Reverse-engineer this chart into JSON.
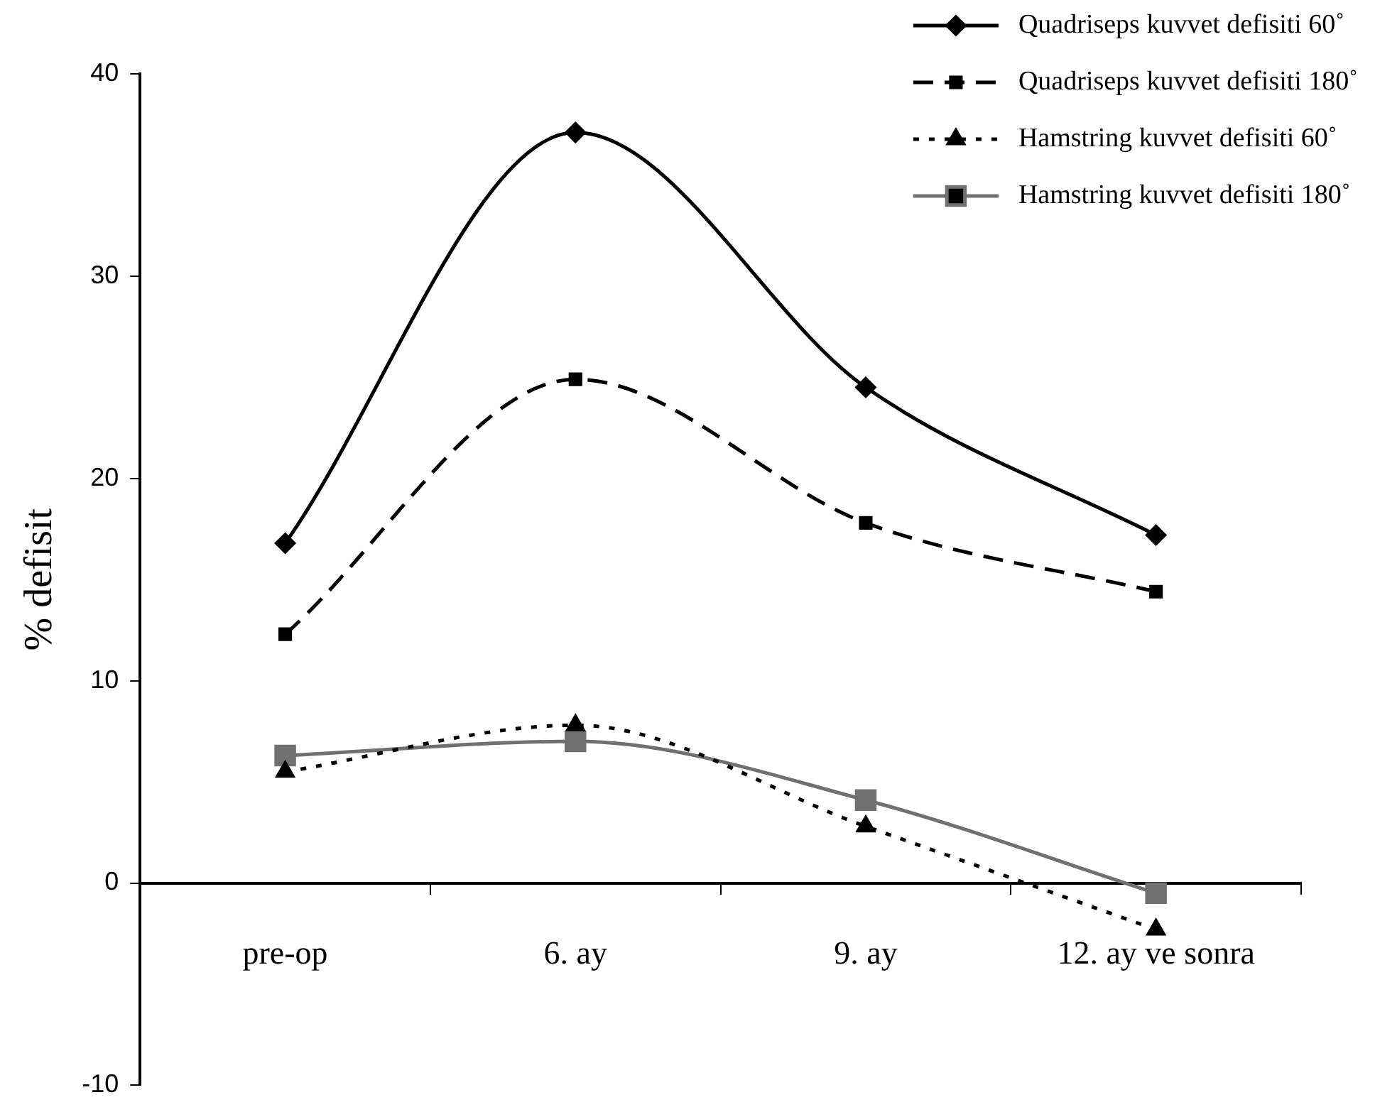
{
  "chart_data": {
    "type": "line",
    "ylabel": "% defisit",
    "categories": [
      "pre-op",
      "6. ay",
      "9. ay",
      "12. ay ve sonra"
    ],
    "series": [
      {
        "name": "Quadriseps kuvvet defisiti 60˚",
        "color": "#000000",
        "marker": "diamond",
        "line_style": "solid",
        "values": [
          16.8,
          37.1,
          24.5,
          17.2
        ]
      },
      {
        "name": "Quadriseps kuvvet defisiti 180˚",
        "color": "#000000",
        "marker": "square",
        "line_style": "dashed",
        "values": [
          12.3,
          24.9,
          17.8,
          14.4
        ]
      },
      {
        "name": "Hamstring kuvvet defisiti 60˚",
        "color": "#000000",
        "marker": "triangle",
        "line_style": "dotted",
        "values": [
          5.5,
          7.8,
          2.8,
          -2.3
        ]
      },
      {
        "name": "Hamstring kuvvet defisiti 180˚",
        "color": "#707070",
        "marker": "square",
        "line_style": "solid",
        "values": [
          6.3,
          7.0,
          4.1,
          -0.5
        ]
      }
    ],
    "ylim": [
      -10,
      40
    ],
    "yticks": [
      -10,
      0,
      10,
      20,
      30,
      40
    ],
    "grid": false,
    "legend": "top right"
  }
}
